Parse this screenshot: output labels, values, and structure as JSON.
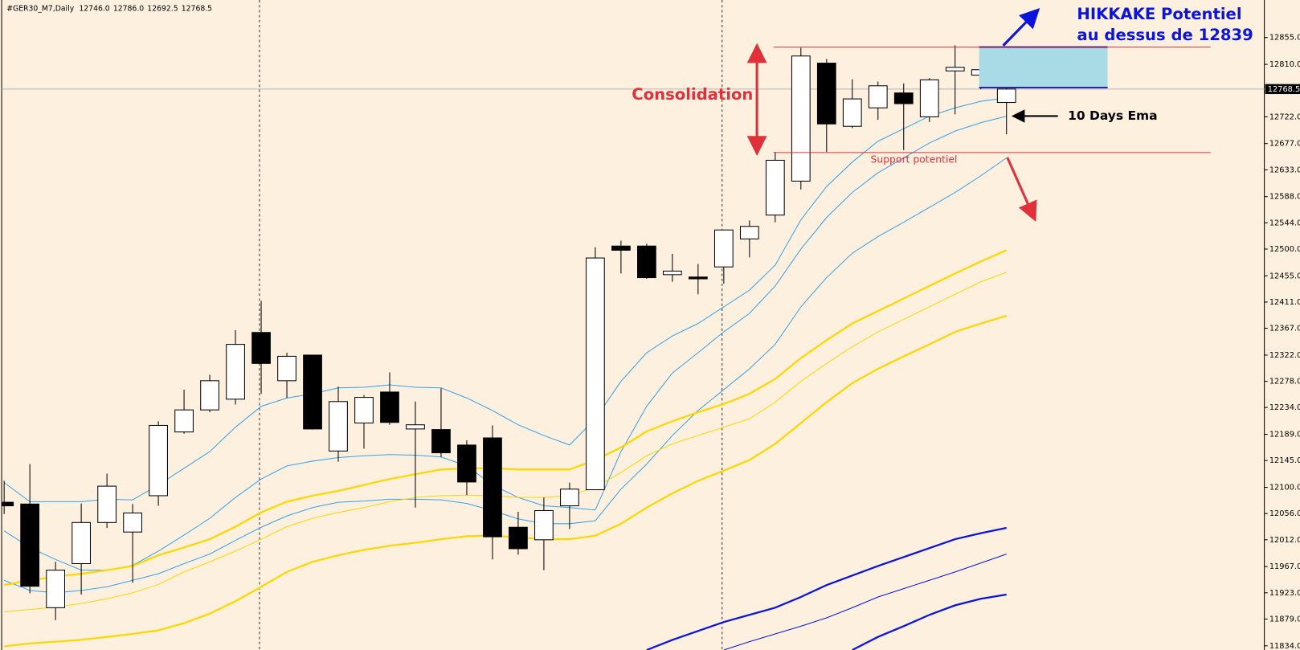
{
  "header": {
    "symbol": "#GER30_M7,Daily",
    "ohlc": [
      "12746.0",
      "12786.0",
      "12692.5",
      "12768.5"
    ]
  },
  "chart_data": {
    "type": "candlestick",
    "ylim": [
      11827,
      12918
    ],
    "yticks": [
      {
        "value": 12855,
        "label": "12855.0"
      },
      {
        "value": 12810,
        "label": "12810.0"
      },
      {
        "value": 12722,
        "label": "12722.0"
      },
      {
        "value": 12677,
        "label": "12677.0"
      },
      {
        "value": 12633,
        "label": "12633.0"
      },
      {
        "value": 12588,
        "label": "12588.0"
      },
      {
        "value": 12544,
        "label": "12544.0"
      },
      {
        "value": 12500,
        "label": "12500.0"
      },
      {
        "value": 12455,
        "label": "12455.0"
      },
      {
        "value": 12411,
        "label": "12411.0"
      },
      {
        "value": 12367,
        "label": "12367.0"
      },
      {
        "value": 12322,
        "label": "12322.0"
      },
      {
        "value": 12278,
        "label": "12278.0"
      },
      {
        "value": 12234,
        "label": "12234.0"
      },
      {
        "value": 12189,
        "label": "12189.0"
      },
      {
        "value": 12145,
        "label": "12145.0"
      },
      {
        "value": 12100,
        "label": "12100.0"
      },
      {
        "value": 12056,
        "label": "12056.0"
      },
      {
        "value": 12012,
        "label": "12012.0"
      },
      {
        "value": 11967,
        "label": "11967.0"
      },
      {
        "value": 11923,
        "label": "11923.0"
      },
      {
        "value": 11879,
        "label": "11879.0"
      },
      {
        "value": 11834,
        "label": "11834.0"
      }
    ],
    "current_price": {
      "value": 12768.5,
      "label": "12768.5"
    },
    "up_color": "#ffffff",
    "down_color": "#000000",
    "candles": {
      "open": [
        12075,
        12072,
        11898,
        11972,
        12041,
        12025,
        12086,
        12193,
        12230,
        12248,
        12360,
        12279,
        12322,
        12161,
        12208,
        12260,
        12198,
        12197,
        12171,
        12183,
        12033,
        12012,
        12069,
        12096,
        12505,
        12505,
        12457,
        12453,
        12470,
        12517,
        12557,
        12614,
        12812,
        12706,
        12737,
        12762,
        12722,
        12799,
        12792,
        12746
      ],
      "high": [
        12111,
        12139,
        11975,
        12073,
        12123,
        12072,
        12211,
        12264,
        12289,
        12364,
        12413,
        12326,
        12322,
        12269,
        12255,
        12293,
        12244,
        12266,
        12179,
        12204,
        12059,
        12083,
        12108,
        12503,
        12514,
        12509,
        12492,
        12475,
        12532,
        12548,
        12663,
        12838,
        12819,
        12785,
        12781,
        12778,
        12787,
        12842,
        12809,
        12786
      ],
      "low": [
        12055,
        11922,
        11877,
        11920,
        12032,
        11940,
        12069,
        12190,
        12226,
        12239,
        12257,
        12250,
        12197,
        12143,
        12165,
        12205,
        12066,
        12151,
        12087,
        11979,
        11987,
        11961,
        12030,
        12096,
        12459,
        12450,
        12445,
        12424,
        12442,
        12486,
        12545,
        12600,
        12663,
        12703,
        12717,
        12666,
        12713,
        12726,
        12768,
        12692.5
      ],
      "close": [
        12069,
        11934,
        11961,
        12041,
        12102,
        12057,
        12204,
        12230,
        12279,
        12340,
        12308,
        12320,
        12198,
        12244,
        12251,
        12209,
        12205,
        12158,
        12109,
        12017,
        11997,
        12061,
        12097,
        12485,
        12498,
        12452,
        12463,
        12450,
        12532,
        12538,
        12649,
        12824,
        12710,
        12752,
        12774,
        12744,
        12784,
        12805,
        12801,
        12768.5
      ]
    },
    "lines": [
      {
        "color": "#3aa0e8",
        "thick": false,
        "values": [
          12108,
          12076,
          12076,
          12076,
          12080,
          12079,
          12104,
          12132,
          12160,
          12201,
          12236,
          12250,
          12257,
          12267,
          12268,
          12272,
          12268,
          12267,
          12250,
          12229,
          12205,
          12187,
          12171,
          12215,
          12278,
          12326,
          12354,
          12375,
          12403,
          12431,
          12473,
          12549,
          12605,
          12646,
          12681,
          12702,
          12723,
          12737,
          12748,
          12754
        ]
      },
      {
        "color": "#3aa0e8",
        "thick": false,
        "values": [
          12027,
          11999,
          11979,
          11961,
          11961,
          11969,
          11993,
          12020,
          12048,
          12083,
          12114,
          12136,
          12144,
          12150,
          12153,
          12155,
          12154,
          12151,
          12136,
          12104,
          12083,
          12069,
          12066,
          12062,
          12160,
          12236,
          12292,
          12326,
          12361,
          12392,
          12438,
          12500,
          12553,
          12595,
          12628,
          12653,
          12678,
          12698,
          12712,
          12723
        ]
      },
      {
        "color": "#3aa0e8",
        "thick": false,
        "values": [
          11944,
          11927,
          11923,
          11927,
          11933,
          11944,
          11955,
          11972,
          11988,
          12011,
          12033,
          12052,
          12066,
          12075,
          12077,
          12080,
          12080,
          12079,
          12073,
          12061,
          12047,
          12039,
          12039,
          12044,
          12097,
          12139,
          12187,
          12229,
          12264,
          12299,
          12340,
          12403,
          12452,
          12493,
          12521,
          12545,
          12570,
          12595,
          12623,
          12653
        ]
      },
      {
        "color": "#ffd700",
        "thick": true,
        "values": [
          11936,
          11944,
          11950,
          11955,
          11961,
          11968,
          11986,
          11999,
          12013,
          12034,
          12058,
          12076,
          12086,
          12094,
          12104,
          12114,
          12122,
          12130,
          12132,
          12132,
          12130,
          12130,
          12130,
          12146,
          12167,
          12194,
          12211,
          12226,
          12240,
          12257,
          12282,
          12317,
          12347,
          12375,
          12396,
          12417,
          12438,
          12459,
          12479,
          12498
        ]
      },
      {
        "color": "#ffd700",
        "thick": false,
        "values": [
          11891,
          11895,
          11899,
          11905,
          11913,
          11923,
          11937,
          11958,
          11975,
          11993,
          12013,
          12034,
          12048,
          12058,
          12066,
          12076,
          12083,
          12086,
          12087,
          12086,
          12083,
          12083,
          12086,
          12100,
          12125,
          12153,
          12173,
          12187,
          12201,
          12215,
          12243,
          12278,
          12308,
          12336,
          12361,
          12382,
          12403,
          12424,
          12445,
          12461
        ]
      },
      {
        "color": "#ffd700",
        "thick": true,
        "values": [
          11833,
          11838,
          11841,
          11844,
          11849,
          11854,
          11860,
          11872,
          11888,
          11909,
          11933,
          11958,
          11975,
          11986,
          11995,
          12002,
          12007,
          12013,
          12018,
          12019,
          12016,
          12013,
          12013,
          12019,
          12039,
          12066,
          12090,
          12111,
          12128,
          12146,
          12173,
          12208,
          12243,
          12275,
          12299,
          12320,
          12340,
          12361,
          12375,
          12388
        ]
      },
      {
        "color": "#0a14dc",
        "thick": true,
        "values": [
          null,
          null,
          null,
          null,
          null,
          null,
          null,
          null,
          null,
          null,
          null,
          null,
          null,
          null,
          null,
          null,
          null,
          null,
          null,
          null,
          null,
          null,
          null,
          null,
          null,
          11827,
          11844,
          11859,
          11874,
          11886,
          11898,
          11916,
          11936,
          11952,
          11968,
          11983,
          11998,
          12013,
          12023,
          12032
        ]
      },
      {
        "color": "#0a14dc",
        "thick": false,
        "values": [
          null,
          null,
          null,
          null,
          null,
          null,
          null,
          null,
          null,
          null,
          null,
          null,
          null,
          null,
          null,
          null,
          null,
          null,
          null,
          null,
          null,
          null,
          null,
          null,
          null,
          null,
          null,
          null,
          11827,
          11841,
          11854,
          11867,
          11881,
          11898,
          11916,
          11930,
          11944,
          11958,
          11973,
          11988
        ]
      },
      {
        "color": "#0a14dc",
        "thick": true,
        "values": [
          null,
          null,
          null,
          null,
          null,
          null,
          null,
          null,
          null,
          null,
          null,
          null,
          null,
          null,
          null,
          null,
          null,
          null,
          null,
          null,
          null,
          null,
          null,
          null,
          null,
          null,
          null,
          null,
          null,
          null,
          null,
          null,
          null,
          11827,
          11849,
          11867,
          11886,
          11902,
          11913,
          11920
        ]
      }
    ],
    "annotations": {
      "resistance": 12839,
      "support": 12662,
      "level_color": "#e0303a",
      "box": {
        "high": 12839,
        "low": 12771,
        "fill": "#a8dbe6",
        "edge": "#2424a8"
      },
      "hikkake": [
        "HIKKAKE Potentiel",
        "au dessus de 12839"
      ],
      "consolidation": "Consolidation",
      "support_label": "Support potentiel",
      "ema_label": "10 Days Ema"
    }
  }
}
